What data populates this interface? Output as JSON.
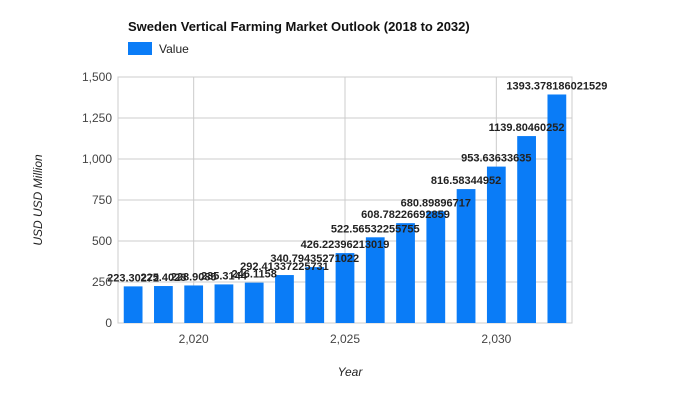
{
  "chart_data": {
    "type": "bar",
    "title": "Sweden Vertical Farming Market Outlook (2018 to 2032)",
    "xlabel": "Year",
    "ylabel": "USD USD Million",
    "legend": {
      "position": "top-left",
      "entries": [
        "Value"
      ]
    },
    "grid": true,
    "bar_color": "#0a7cf7",
    "ylim": [
      0,
      1500
    ],
    "y_ticks": [
      0,
      250,
      500,
      750,
      1000,
      1250,
      1500
    ],
    "y_tick_labels": [
      "0",
      "250",
      "500",
      "750",
      "1,000",
      "1,250",
      "1,500"
    ],
    "x_ticks": [
      2020,
      2025,
      2030
    ],
    "x_tick_labels": [
      "2,020",
      "2,025",
      "2,030"
    ],
    "x_range": [
      2017.5,
      2032.5
    ],
    "series": [
      {
        "name": "Value",
        "x": [
          2018,
          2019,
          2020,
          2021,
          2022,
          2023,
          2024,
          2025,
          2026,
          2027,
          2028,
          2029,
          2030,
          2031,
          2032
        ],
        "values": [
          223.3027,
          225.4,
          228.9,
          235.3,
          246.1,
          292.41337225731,
          340.79435271022,
          426.22396213019,
          522.56532255755,
          608.78226692859,
          680.89896717,
          816.58344952,
          953.63633635,
          1139.80460252,
          1393.378186021529
        ],
        "labels": [
          "223.30272",
          "225.4028",
          "228.9085",
          "235.3144",
          "246.1158",
          "292.41337225731",
          "340.79435271022",
          "426.22396213019",
          "522.56532255755",
          "608.78226692859",
          "680.89896717",
          "816.58344952",
          "953.63633635",
          "1139.80460252",
          "1393.378186021529"
        ]
      }
    ]
  }
}
